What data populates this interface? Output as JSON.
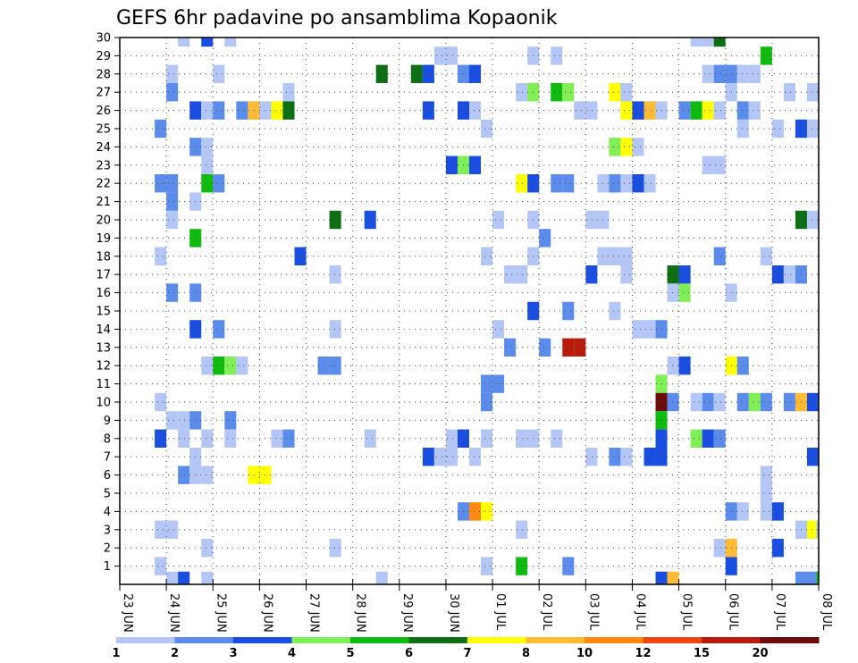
{
  "chart_data": {
    "type": "heatmap",
    "title": "GEFS 6hr padavine po ansamblima Kopaonik",
    "xlabel": "",
    "ylabel": "",
    "x_tick_labels": [
      "23 JUN",
      "24 JUN",
      "25 JUN",
      "26 JUN",
      "27 JUN",
      "28 JUN",
      "29 JUN",
      "30 JUN",
      "01 JUL",
      "02 JUL",
      "03 JUL",
      "04 JUL",
      "05 JUL",
      "06 JUL",
      "07 JUL",
      "08 JUL"
    ],
    "y_tick_labels": [
      "1",
      "2",
      "3",
      "4",
      "5",
      "6",
      "7",
      "8",
      "9",
      "10",
      "11",
      "12",
      "13",
      "14",
      "15",
      "16",
      "17",
      "18",
      "19",
      "20",
      "21",
      "22",
      "23",
      "24",
      "25",
      "26",
      "27",
      "28",
      "29",
      "30"
    ],
    "x_range": [
      0,
      60
    ],
    "y_range": [
      0,
      30
    ],
    "grid": true,
    "legend": {
      "placement": "bottom",
      "labels": [
        "1",
        "2",
        "3",
        "4",
        "5",
        "6",
        "7",
        "8",
        "10",
        "12",
        "15",
        "20"
      ],
      "colors": [
        "#b3c6f5",
        "#5b8cec",
        "#1a4ee0",
        "#80ee55",
        "#10bb10",
        "#0e6e14",
        "#ffff00",
        "#ffbb33",
        "#ff8811",
        "#ee4411",
        "#b81b0b",
        "#6b0b0b"
      ]
    },
    "cell_note": "x = 6-hour step index from 23 JUN 00Z, y = ensemble member, c = colour class index",
    "cells": [
      {
        "x": 5.5,
        "y": 30,
        "c": 1
      },
      {
        "x": 7.5,
        "y": 30,
        "c": 3
      },
      {
        "x": 9.5,
        "y": 30,
        "c": 1
      },
      {
        "x": 49.5,
        "y": 30,
        "c": 1
      },
      {
        "x": 50.5,
        "y": 30,
        "c": 1
      },
      {
        "x": 51.5,
        "y": 30,
        "c": 6
      },
      {
        "x": 27.5,
        "y": 29,
        "c": 1
      },
      {
        "x": 28.5,
        "y": 29,
        "c": 1
      },
      {
        "x": 35.5,
        "y": 29,
        "c": 1
      },
      {
        "x": 37.5,
        "y": 29,
        "c": 1
      },
      {
        "x": 55.5,
        "y": 29,
        "c": 5
      },
      {
        "x": 4.5,
        "y": 28,
        "c": 1
      },
      {
        "x": 8.5,
        "y": 28,
        "c": 1
      },
      {
        "x": 22.5,
        "y": 28,
        "c": 6
      },
      {
        "x": 25.5,
        "y": 28,
        "c": 6
      },
      {
        "x": 26.5,
        "y": 28,
        "c": 3
      },
      {
        "x": 29.5,
        "y": 28,
        "c": 2
      },
      {
        "x": 30.5,
        "y": 28,
        "c": 3
      },
      {
        "x": 50.5,
        "y": 28,
        "c": 1
      },
      {
        "x": 51.5,
        "y": 28,
        "c": 2
      },
      {
        "x": 52.5,
        "y": 28,
        "c": 2
      },
      {
        "x": 53.5,
        "y": 28,
        "c": 1
      },
      {
        "x": 54.5,
        "y": 28,
        "c": 1
      },
      {
        "x": 4.5,
        "y": 27,
        "c": 2
      },
      {
        "x": 14.5,
        "y": 27,
        "c": 1
      },
      {
        "x": 34.5,
        "y": 27,
        "c": 1
      },
      {
        "x": 35.5,
        "y": 27,
        "c": 4
      },
      {
        "x": 37.5,
        "y": 27,
        "c": 5
      },
      {
        "x": 38.5,
        "y": 27,
        "c": 4
      },
      {
        "x": 42.5,
        "y": 27,
        "c": 7
      },
      {
        "x": 43.5,
        "y": 27,
        "c": 1
      },
      {
        "x": 52.5,
        "y": 27,
        "c": 1
      },
      {
        "x": 57.5,
        "y": 27,
        "c": 1
      },
      {
        "x": 59.5,
        "y": 27,
        "c": 1
      },
      {
        "x": 6.5,
        "y": 26,
        "c": 3
      },
      {
        "x": 7.5,
        "y": 26,
        "c": 1
      },
      {
        "x": 8.5,
        "y": 26,
        "c": 2
      },
      {
        "x": 10.5,
        "y": 26,
        "c": 2
      },
      {
        "x": 11.5,
        "y": 26,
        "c": 8
      },
      {
        "x": 12.5,
        "y": 26,
        "c": 1
      },
      {
        "x": 13.5,
        "y": 26,
        "c": 7
      },
      {
        "x": 14.5,
        "y": 26,
        "c": 6
      },
      {
        "x": 26.5,
        "y": 26,
        "c": 3
      },
      {
        "x": 29.5,
        "y": 26,
        "c": 3
      },
      {
        "x": 30.5,
        "y": 26,
        "c": 1
      },
      {
        "x": 39.5,
        "y": 26,
        "c": 1
      },
      {
        "x": 40.5,
        "y": 26,
        "c": 1
      },
      {
        "x": 43.5,
        "y": 26,
        "c": 7
      },
      {
        "x": 44.5,
        "y": 26,
        "c": 3
      },
      {
        "x": 45.5,
        "y": 26,
        "c": 8
      },
      {
        "x": 46.5,
        "y": 26,
        "c": 1
      },
      {
        "x": 48.5,
        "y": 26,
        "c": 2
      },
      {
        "x": 49.5,
        "y": 26,
        "c": 5
      },
      {
        "x": 50.5,
        "y": 26,
        "c": 7
      },
      {
        "x": 51.5,
        "y": 26,
        "c": 1
      },
      {
        "x": 53.5,
        "y": 26,
        "c": 2
      },
      {
        "x": 54.5,
        "y": 26,
        "c": 1
      },
      {
        "x": 3.5,
        "y": 25,
        "c": 2
      },
      {
        "x": 31.5,
        "y": 25,
        "c": 1
      },
      {
        "x": 53.5,
        "y": 25,
        "c": 1
      },
      {
        "x": 56.5,
        "y": 25,
        "c": 1
      },
      {
        "x": 58.5,
        "y": 25,
        "c": 3
      },
      {
        "x": 59.5,
        "y": 25,
        "c": 1
      },
      {
        "x": 6.5,
        "y": 24,
        "c": 2
      },
      {
        "x": 7.5,
        "y": 24,
        "c": 1
      },
      {
        "x": 42.5,
        "y": 24,
        "c": 4
      },
      {
        "x": 43.5,
        "y": 24,
        "c": 7
      },
      {
        "x": 44.5,
        "y": 24,
        "c": 1
      },
      {
        "x": 7.5,
        "y": 23,
        "c": 1
      },
      {
        "x": 28.5,
        "y": 23,
        "c": 3
      },
      {
        "x": 29.5,
        "y": 23,
        "c": 4
      },
      {
        "x": 30.5,
        "y": 23,
        "c": 3
      },
      {
        "x": 50.5,
        "y": 23,
        "c": 1
      },
      {
        "x": 51.5,
        "y": 23,
        "c": 1
      },
      {
        "x": 3.5,
        "y": 22,
        "c": 2
      },
      {
        "x": 4.5,
        "y": 22,
        "c": 2
      },
      {
        "x": 7.5,
        "y": 22,
        "c": 5
      },
      {
        "x": 8.5,
        "y": 22,
        "c": 2
      },
      {
        "x": 34.5,
        "y": 22,
        "c": 7
      },
      {
        "x": 35.5,
        "y": 22,
        "c": 3
      },
      {
        "x": 37.5,
        "y": 22,
        "c": 2
      },
      {
        "x": 38.5,
        "y": 22,
        "c": 2
      },
      {
        "x": 41.5,
        "y": 22,
        "c": 1
      },
      {
        "x": 42.5,
        "y": 22,
        "c": 2
      },
      {
        "x": 43.5,
        "y": 22,
        "c": 1
      },
      {
        "x": 44.5,
        "y": 22,
        "c": 3
      },
      {
        "x": 45.5,
        "y": 22,
        "c": 1
      },
      {
        "x": 4.5,
        "y": 21,
        "c": 2
      },
      {
        "x": 6.5,
        "y": 21,
        "c": 1
      },
      {
        "x": 4.5,
        "y": 20,
        "c": 1
      },
      {
        "x": 18.5,
        "y": 20,
        "c": 6
      },
      {
        "x": 21.5,
        "y": 20,
        "c": 3
      },
      {
        "x": 32.5,
        "y": 20,
        "c": 1
      },
      {
        "x": 35.5,
        "y": 20,
        "c": 1
      },
      {
        "x": 40.5,
        "y": 20,
        "c": 1
      },
      {
        "x": 41.5,
        "y": 20,
        "c": 1
      },
      {
        "x": 58.5,
        "y": 20,
        "c": 6
      },
      {
        "x": 59.5,
        "y": 20,
        "c": 1
      },
      {
        "x": 6.5,
        "y": 19,
        "c": 5
      },
      {
        "x": 36.5,
        "y": 19,
        "c": 2
      },
      {
        "x": 3.5,
        "y": 18,
        "c": 1
      },
      {
        "x": 15.5,
        "y": 18,
        "c": 3
      },
      {
        "x": 31.5,
        "y": 18,
        "c": 1
      },
      {
        "x": 35.5,
        "y": 18,
        "c": 1
      },
      {
        "x": 41.5,
        "y": 18,
        "c": 1
      },
      {
        "x": 42.5,
        "y": 18,
        "c": 1
      },
      {
        "x": 43.5,
        "y": 18,
        "c": 1
      },
      {
        "x": 51.5,
        "y": 18,
        "c": 2
      },
      {
        "x": 55.5,
        "y": 18,
        "c": 1
      },
      {
        "x": 18.5,
        "y": 17,
        "c": 1
      },
      {
        "x": 33.5,
        "y": 17,
        "c": 1
      },
      {
        "x": 34.5,
        "y": 17,
        "c": 1
      },
      {
        "x": 40.5,
        "y": 17,
        "c": 3
      },
      {
        "x": 43.5,
        "y": 17,
        "c": 1
      },
      {
        "x": 47.5,
        "y": 17,
        "c": 6
      },
      {
        "x": 48.5,
        "y": 17,
        "c": 3
      },
      {
        "x": 56.5,
        "y": 17,
        "c": 3
      },
      {
        "x": 57.5,
        "y": 17,
        "c": 1
      },
      {
        "x": 58.5,
        "y": 17,
        "c": 2
      },
      {
        "x": 4.5,
        "y": 16,
        "c": 2
      },
      {
        "x": 6.5,
        "y": 16,
        "c": 2
      },
      {
        "x": 47.5,
        "y": 16,
        "c": 1
      },
      {
        "x": 48.5,
        "y": 16,
        "c": 4
      },
      {
        "x": 52.5,
        "y": 16,
        "c": 1
      },
      {
        "x": 42.5,
        "y": 15,
        "c": 1
      },
      {
        "x": 35.5,
        "y": 15,
        "c": 3
      },
      {
        "x": 38.5,
        "y": 15,
        "c": 2
      },
      {
        "x": 6.5,
        "y": 14,
        "c": 3
      },
      {
        "x": 8.5,
        "y": 14,
        "c": 2
      },
      {
        "x": 18.5,
        "y": 14,
        "c": 1
      },
      {
        "x": 32.5,
        "y": 14,
        "c": 1
      },
      {
        "x": 44.5,
        "y": 14,
        "c": 1
      },
      {
        "x": 45.5,
        "y": 14,
        "c": 1
      },
      {
        "x": 46.5,
        "y": 14,
        "c": 2
      },
      {
        "x": 33.5,
        "y": 13,
        "c": 2
      },
      {
        "x": 36.5,
        "y": 13,
        "c": 2
      },
      {
        "x": 38.5,
        "y": 13,
        "c": 11
      },
      {
        "x": 39.5,
        "y": 13,
        "c": 11
      },
      {
        "x": 7.5,
        "y": 12,
        "c": 1
      },
      {
        "x": 8.5,
        "y": 12,
        "c": 5
      },
      {
        "x": 9.5,
        "y": 12,
        "c": 4
      },
      {
        "x": 10.5,
        "y": 12,
        "c": 1
      },
      {
        "x": 17.5,
        "y": 12,
        "c": 2
      },
      {
        "x": 18.5,
        "y": 12,
        "c": 2
      },
      {
        "x": 47.5,
        "y": 12,
        "c": 1
      },
      {
        "x": 48.5,
        "y": 12,
        "c": 3
      },
      {
        "x": 52.5,
        "y": 12,
        "c": 7
      },
      {
        "x": 53.5,
        "y": 12,
        "c": 2
      },
      {
        "x": 31.5,
        "y": 11,
        "c": 2
      },
      {
        "x": 32.5,
        "y": 11,
        "c": 2
      },
      {
        "x": 46.5,
        "y": 11,
        "c": 4
      },
      {
        "x": 3.5,
        "y": 10,
        "c": 1
      },
      {
        "x": 31.5,
        "y": 10,
        "c": 2
      },
      {
        "x": 46.5,
        "y": 10,
        "c": 12
      },
      {
        "x": 47.5,
        "y": 10,
        "c": 2
      },
      {
        "x": 49.5,
        "y": 10,
        "c": 1
      },
      {
        "x": 50.5,
        "y": 10,
        "c": 2
      },
      {
        "x": 51.5,
        "y": 10,
        "c": 1
      },
      {
        "x": 53.5,
        "y": 10,
        "c": 2
      },
      {
        "x": 54.5,
        "y": 10,
        "c": 4
      },
      {
        "x": 55.5,
        "y": 10,
        "c": 2
      },
      {
        "x": 57.5,
        "y": 10,
        "c": 2
      },
      {
        "x": 58.5,
        "y": 10,
        "c": 8
      },
      {
        "x": 59.5,
        "y": 10,
        "c": 3
      },
      {
        "x": 4.5,
        "y": 9,
        "c": 1
      },
      {
        "x": 5.5,
        "y": 9,
        "c": 1
      },
      {
        "x": 6.5,
        "y": 9,
        "c": 2
      },
      {
        "x": 9.5,
        "y": 9,
        "c": 2
      },
      {
        "x": 46.5,
        "y": 9,
        "c": 5
      },
      {
        "x": 3.5,
        "y": 8,
        "c": 3
      },
      {
        "x": 5.5,
        "y": 8,
        "c": 1
      },
      {
        "x": 7.5,
        "y": 8,
        "c": 1
      },
      {
        "x": 9.5,
        "y": 8,
        "c": 1
      },
      {
        "x": 13.5,
        "y": 8,
        "c": 1
      },
      {
        "x": 14.5,
        "y": 8,
        "c": 2
      },
      {
        "x": 21.5,
        "y": 8,
        "c": 1
      },
      {
        "x": 28.5,
        "y": 8,
        "c": 1
      },
      {
        "x": 29.5,
        "y": 8,
        "c": 3
      },
      {
        "x": 31.5,
        "y": 8,
        "c": 1
      },
      {
        "x": 34.5,
        "y": 8,
        "c": 1
      },
      {
        "x": 35.5,
        "y": 8,
        "c": 1
      },
      {
        "x": 37.5,
        "y": 8,
        "c": 1
      },
      {
        "x": 46.5,
        "y": 8,
        "c": 3
      },
      {
        "x": 49.5,
        "y": 8,
        "c": 4
      },
      {
        "x": 50.5,
        "y": 8,
        "c": 3
      },
      {
        "x": 51.5,
        "y": 8,
        "c": 2
      },
      {
        "x": 6.5,
        "y": 7,
        "c": 1
      },
      {
        "x": 26.5,
        "y": 7,
        "c": 3
      },
      {
        "x": 27.5,
        "y": 7,
        "c": 1
      },
      {
        "x": 28.5,
        "y": 7,
        "c": 1
      },
      {
        "x": 30.5,
        "y": 7,
        "c": 1
      },
      {
        "x": 40.5,
        "y": 7,
        "c": 1
      },
      {
        "x": 42.5,
        "y": 7,
        "c": 2
      },
      {
        "x": 43.5,
        "y": 7,
        "c": 1
      },
      {
        "x": 45.5,
        "y": 7,
        "c": 3
      },
      {
        "x": 46.5,
        "y": 7,
        "c": 3
      },
      {
        "x": 59.5,
        "y": 7,
        "c": 3
      },
      {
        "x": 5.5,
        "y": 6,
        "c": 2
      },
      {
        "x": 6.5,
        "y": 6,
        "c": 1
      },
      {
        "x": 7.5,
        "y": 6,
        "c": 1
      },
      {
        "x": 11.5,
        "y": 6,
        "c": 7
      },
      {
        "x": 12.5,
        "y": 6,
        "c": 7
      },
      {
        "x": 55.5,
        "y": 6,
        "c": 1
      },
      {
        "x": 55.5,
        "y": 5,
        "c": 1
      },
      {
        "x": 29.5,
        "y": 4,
        "c": 2
      },
      {
        "x": 30.5,
        "y": 4,
        "c": 9
      },
      {
        "x": 31.5,
        "y": 4,
        "c": 7
      },
      {
        "x": 52.5,
        "y": 4,
        "c": 2
      },
      {
        "x": 53.5,
        "y": 4,
        "c": 1
      },
      {
        "x": 55.5,
        "y": 4,
        "c": 1
      },
      {
        "x": 56.5,
        "y": 4,
        "c": 3
      },
      {
        "x": 3.5,
        "y": 3,
        "c": 1
      },
      {
        "x": 4.5,
        "y": 3,
        "c": 1
      },
      {
        "x": 34.5,
        "y": 3,
        "c": 1
      },
      {
        "x": 58.5,
        "y": 3,
        "c": 1
      },
      {
        "x": 59.5,
        "y": 3,
        "c": 7
      },
      {
        "x": 60.3,
        "y": 3,
        "c": 1
      },
      {
        "x": 7.5,
        "y": 2,
        "c": 1
      },
      {
        "x": 18.5,
        "y": 2,
        "c": 1
      },
      {
        "x": 51.5,
        "y": 2,
        "c": 1
      },
      {
        "x": 52.5,
        "y": 2,
        "c": 8
      },
      {
        "x": 56.5,
        "y": 2,
        "c": 3
      },
      {
        "x": 3.5,
        "y": 1,
        "c": 1
      },
      {
        "x": 31.5,
        "y": 1,
        "c": 1
      },
      {
        "x": 34.5,
        "y": 1,
        "c": 5
      },
      {
        "x": 38.5,
        "y": 1,
        "c": 2
      },
      {
        "x": 52.5,
        "y": 1,
        "c": 3
      },
      {
        "x": 4.5,
        "y": 0.2,
        "c": 1
      },
      {
        "x": 5.5,
        "y": 0.2,
        "c": 3
      },
      {
        "x": 7.5,
        "y": 0.2,
        "c": 1
      },
      {
        "x": 22.5,
        "y": 0.2,
        "c": 1
      },
      {
        "x": 46.5,
        "y": 0.2,
        "c": 3
      },
      {
        "x": 47.5,
        "y": 0.2,
        "c": 8
      },
      {
        "x": 58.5,
        "y": 0.2,
        "c": 2
      },
      {
        "x": 59.5,
        "y": 0.2,
        "c": 2
      },
      {
        "x": 60.3,
        "y": 0.2,
        "c": 5
      }
    ]
  }
}
